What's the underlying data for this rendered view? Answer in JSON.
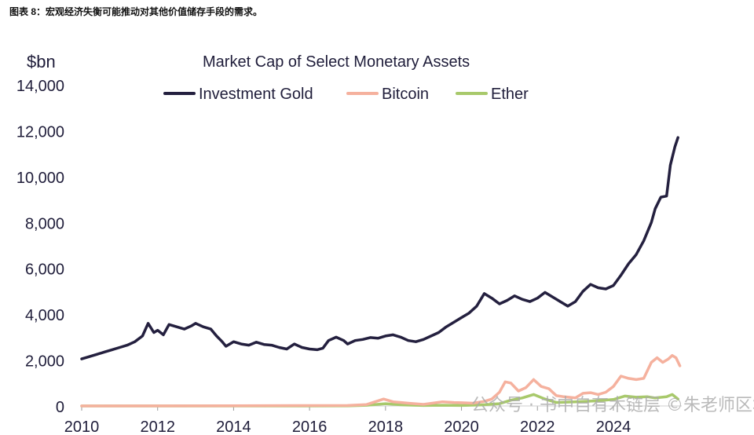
{
  "caption": "图表 8：宏观经济失衡可能推动对其他价值储存手段的需求。",
  "watermark": "公众号 · 书中自有木链层 ©朱老师区块链",
  "chart_data": {
    "type": "line",
    "title": "Market Cap of Select Monetary Assets",
    "ylabel": "$bn",
    "xlabel": "",
    "xlim": [
      2010,
      2025.8
    ],
    "ylim": [
      0,
      14000
    ],
    "yticks": [
      "0",
      "2,000",
      "4,000",
      "6,000",
      "8,000",
      "10,000",
      "12,000",
      "14,000"
    ],
    "xticks": [
      "2010",
      "2012",
      "2014",
      "2016",
      "2018",
      "2020",
      "2022",
      "2024"
    ],
    "legend": "top",
    "series": [
      {
        "name": "Investment Gold",
        "color": "#24203f",
        "points": [
          [
            2010.0,
            2050
          ],
          [
            2010.2,
            2150
          ],
          [
            2010.4,
            2250
          ],
          [
            2010.6,
            2350
          ],
          [
            2010.8,
            2450
          ],
          [
            2011.0,
            2550
          ],
          [
            2011.2,
            2650
          ],
          [
            2011.4,
            2800
          ],
          [
            2011.6,
            3050
          ],
          [
            2011.75,
            3600
          ],
          [
            2011.9,
            3200
          ],
          [
            2012.0,
            3300
          ],
          [
            2012.15,
            3100
          ],
          [
            2012.3,
            3550
          ],
          [
            2012.5,
            3450
          ],
          [
            2012.7,
            3350
          ],
          [
            2012.9,
            3500
          ],
          [
            2013.0,
            3600
          ],
          [
            2013.2,
            3450
          ],
          [
            2013.4,
            3350
          ],
          [
            2013.55,
            3050
          ],
          [
            2013.7,
            2800
          ],
          [
            2013.8,
            2600
          ],
          [
            2014.0,
            2800
          ],
          [
            2014.2,
            2700
          ],
          [
            2014.4,
            2650
          ],
          [
            2014.6,
            2780
          ],
          [
            2014.8,
            2680
          ],
          [
            2015.0,
            2650
          ],
          [
            2015.2,
            2550
          ],
          [
            2015.4,
            2480
          ],
          [
            2015.6,
            2700
          ],
          [
            2015.8,
            2550
          ],
          [
            2016.0,
            2480
          ],
          [
            2016.2,
            2450
          ],
          [
            2016.35,
            2520
          ],
          [
            2016.5,
            2850
          ],
          [
            2016.7,
            3000
          ],
          [
            2016.9,
            2850
          ],
          [
            2017.0,
            2700
          ],
          [
            2017.2,
            2850
          ],
          [
            2017.4,
            2900
          ],
          [
            2017.6,
            2980
          ],
          [
            2017.8,
            2950
          ],
          [
            2018.0,
            3050
          ],
          [
            2018.2,
            3100
          ],
          [
            2018.4,
            3000
          ],
          [
            2018.6,
            2850
          ],
          [
            2018.8,
            2800
          ],
          [
            2019.0,
            2900
          ],
          [
            2019.2,
            3050
          ],
          [
            2019.4,
            3200
          ],
          [
            2019.6,
            3450
          ],
          [
            2019.8,
            3650
          ],
          [
            2020.0,
            3850
          ],
          [
            2020.2,
            4050
          ],
          [
            2020.4,
            4350
          ],
          [
            2020.6,
            4900
          ],
          [
            2020.8,
            4700
          ],
          [
            2021.0,
            4450
          ],
          [
            2021.2,
            4600
          ],
          [
            2021.4,
            4800
          ],
          [
            2021.6,
            4650
          ],
          [
            2021.8,
            4550
          ],
          [
            2022.0,
            4700
          ],
          [
            2022.2,
            4950
          ],
          [
            2022.4,
            4750
          ],
          [
            2022.6,
            4550
          ],
          [
            2022.8,
            4350
          ],
          [
            2023.0,
            4550
          ],
          [
            2023.2,
            5000
          ],
          [
            2023.4,
            5300
          ],
          [
            2023.6,
            5150
          ],
          [
            2023.8,
            5100
          ],
          [
            2024.0,
            5250
          ],
          [
            2024.2,
            5700
          ],
          [
            2024.4,
            6200
          ],
          [
            2024.6,
            6600
          ],
          [
            2024.8,
            7200
          ],
          [
            2025.0,
            8000
          ],
          [
            2025.1,
            8600
          ],
          [
            2025.25,
            9100
          ],
          [
            2025.4,
            9150
          ],
          [
            2025.5,
            10500
          ],
          [
            2025.62,
            11300
          ],
          [
            2025.7,
            11700
          ]
        ]
      },
      {
        "name": "Bitcoin",
        "color": "#f5b19e",
        "points": [
          [
            2010.0,
            0
          ],
          [
            2013.0,
            5
          ],
          [
            2017.0,
            20
          ],
          [
            2017.5,
            60
          ],
          [
            2017.95,
            300
          ],
          [
            2018.2,
            180
          ],
          [
            2018.6,
            120
          ],
          [
            2019.0,
            70
          ],
          [
            2019.5,
            180
          ],
          [
            2019.8,
            150
          ],
          [
            2020.0,
            140
          ],
          [
            2020.3,
            120
          ],
          [
            2020.6,
            200
          ],
          [
            2020.8,
            300
          ],
          [
            2021.0,
            600
          ],
          [
            2021.15,
            1050
          ],
          [
            2021.3,
            1000
          ],
          [
            2021.5,
            650
          ],
          [
            2021.7,
            800
          ],
          [
            2021.9,
            1150
          ],
          [
            2022.1,
            850
          ],
          [
            2022.3,
            750
          ],
          [
            2022.5,
            450
          ],
          [
            2022.7,
            400
          ],
          [
            2023.0,
            350
          ],
          [
            2023.2,
            550
          ],
          [
            2023.4,
            580
          ],
          [
            2023.6,
            500
          ],
          [
            2023.8,
            600
          ],
          [
            2024.0,
            850
          ],
          [
            2024.2,
            1300
          ],
          [
            2024.4,
            1200
          ],
          [
            2024.6,
            1150
          ],
          [
            2024.8,
            1200
          ],
          [
            2025.0,
            1900
          ],
          [
            2025.15,
            2100
          ],
          [
            2025.3,
            1900
          ],
          [
            2025.45,
            2050
          ],
          [
            2025.55,
            2200
          ],
          [
            2025.65,
            2100
          ],
          [
            2025.75,
            1750
          ]
        ]
      },
      {
        "name": "Ether",
        "color": "#a8c96b",
        "points": [
          [
            2010.0,
            0
          ],
          [
            2015.6,
            0
          ],
          [
            2017.0,
            5
          ],
          [
            2017.5,
            30
          ],
          [
            2018.0,
            100
          ],
          [
            2018.5,
            40
          ],
          [
            2019.0,
            20
          ],
          [
            2019.5,
            30
          ],
          [
            2020.0,
            20
          ],
          [
            2020.5,
            40
          ],
          [
            2021.0,
            100
          ],
          [
            2021.3,
            250
          ],
          [
            2021.6,
            350
          ],
          [
            2021.9,
            500
          ],
          [
            2022.2,
            300
          ],
          [
            2022.5,
            150
          ],
          [
            2023.0,
            180
          ],
          [
            2023.5,
            220
          ],
          [
            2024.0,
            280
          ],
          [
            2024.3,
            430
          ],
          [
            2024.6,
            380
          ],
          [
            2024.9,
            400
          ],
          [
            2025.1,
            350
          ],
          [
            2025.4,
            400
          ],
          [
            2025.55,
            500
          ],
          [
            2025.7,
            300
          ]
        ]
      }
    ]
  }
}
